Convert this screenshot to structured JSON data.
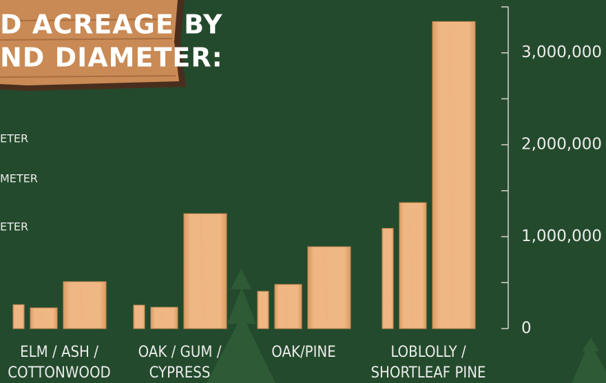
{
  "chart_data": {
    "type": "bar",
    "title": [
      "D  ACREAGE BY",
      "ND DIAMETER:"
    ],
    "categories": [
      [
        "ELM / ASH /",
        "COTTONWOOD"
      ],
      [
        "OAK / GUM /",
        "CYPRESS"
      ],
      [
        "OAK/PINE"
      ],
      [
        "LOBLOLLY /",
        "SHORTLEAF PINE"
      ]
    ],
    "series": [
      {
        "name": "ETER",
        "color": "#e9b07c",
        "values": [
          260000,
          255000,
          405000,
          1090000
        ]
      },
      {
        "name": "METER",
        "color": "#e9b07c",
        "values": [
          225000,
          232000,
          480000,
          1370000
        ]
      },
      {
        "name": "ETER",
        "color": "#e9b07c",
        "values": [
          510000,
          1250000,
          890000,
          3340000
        ]
      }
    ],
    "ylim": [
      0,
      3500000
    ],
    "yticks": [
      0,
      {
        "value": 1000000,
        "label": "1,000,000"
      },
      {
        "value": 2000000,
        "label": "2,000,000"
      },
      {
        "value": 3000000,
        "label": "3,000,000"
      }
    ],
    "minor_yticks": [
      500000,
      1500000,
      2500000,
      3500000
    ]
  }
}
